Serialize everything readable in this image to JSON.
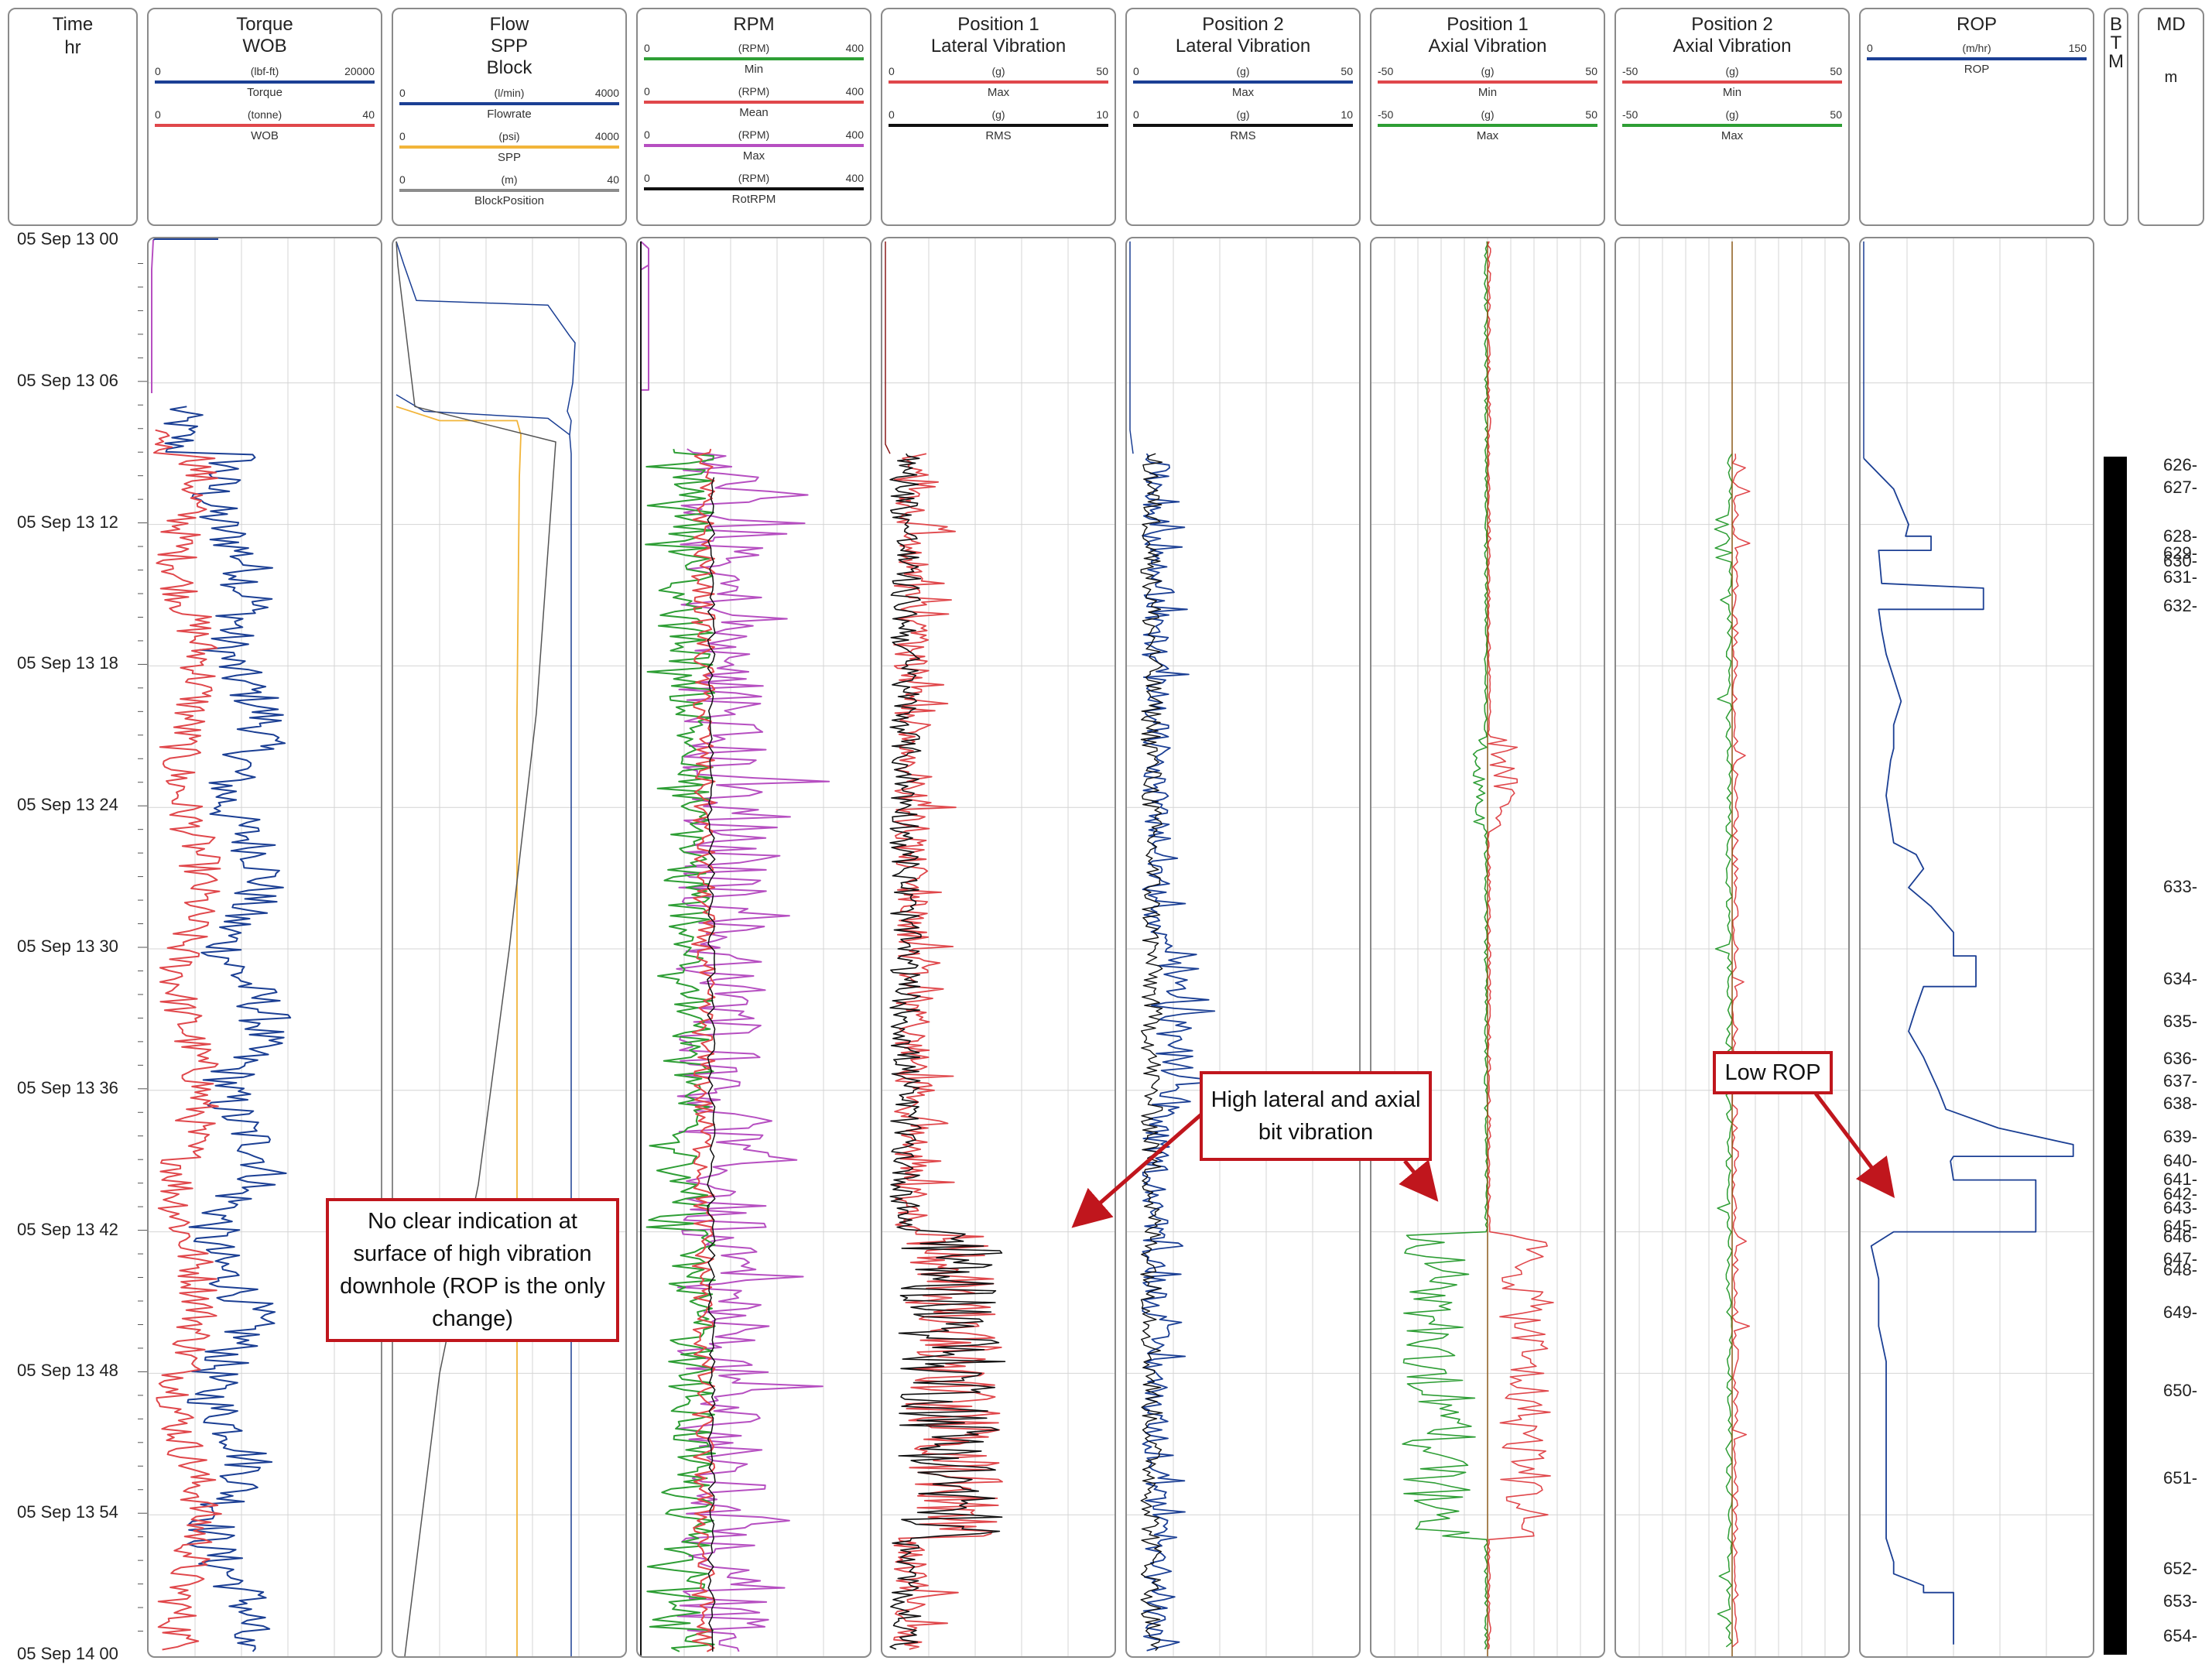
{
  "header": {
    "time": {
      "title": "Time",
      "unit": "hr"
    },
    "torque": {
      "title": [
        "Torque",
        "WOB"
      ],
      "curves": [
        {
          "lo": "0",
          "unit": "(lbf-ft)",
          "hi": "20000",
          "name": "Torque",
          "color": "#1b3f94"
        },
        {
          "lo": "0",
          "unit": "(tonne)",
          "hi": "40",
          "name": "WOB",
          "color": "#e0474b"
        }
      ]
    },
    "flow": {
      "title": [
        "Flow",
        "SPP",
        "Block"
      ],
      "curves": [
        {
          "lo": "0",
          "unit": "(l/min)",
          "hi": "4000",
          "name": "Flowrate",
          "color": "#1b3f94"
        },
        {
          "lo": "0",
          "unit": "(psi)",
          "hi": "4000",
          "name": "SPP",
          "color": "#f2b53a"
        },
        {
          "lo": "0",
          "unit": "(m)",
          "hi": "40",
          "name": "BlockPosition",
          "color": "#8c8c8c"
        }
      ]
    },
    "rpm": {
      "title": [
        "RPM"
      ],
      "curves": [
        {
          "lo": "0",
          "unit": "(RPM)",
          "hi": "400",
          "name": "Min",
          "color": "#2e9e35"
        },
        {
          "lo": "0",
          "unit": "(RPM)",
          "hi": "400",
          "name": "Mean",
          "color": "#e0474b"
        },
        {
          "lo": "0",
          "unit": "(RPM)",
          "hi": "400",
          "name": "Max",
          "color": "#b64fc1"
        },
        {
          "lo": "0",
          "unit": "(RPM)",
          "hi": "400",
          "name": "RotRPM",
          "color": "#111111"
        }
      ]
    },
    "lat1": {
      "title": [
        "Position 1",
        "Lateral Vibration"
      ],
      "curves": [
        {
          "lo": "0",
          "unit": "(g)",
          "hi": "50",
          "name": "Max",
          "color": "#e0474b"
        },
        {
          "lo": "0",
          "unit": "(g)",
          "hi": "10",
          "name": "RMS",
          "color": "#111111"
        }
      ]
    },
    "lat2": {
      "title": [
        "Position 2",
        "Lateral Vibration"
      ],
      "curves": [
        {
          "lo": "0",
          "unit": "(g)",
          "hi": "50",
          "name": "Max",
          "color": "#1b3f94"
        },
        {
          "lo": "0",
          "unit": "(g)",
          "hi": "10",
          "name": "RMS",
          "color": "#111111"
        }
      ]
    },
    "ax1": {
      "title": [
        "Position 1",
        "Axial Vibration"
      ],
      "curves": [
        {
          "lo": "-50",
          "unit": "(g)",
          "hi": "50",
          "name": "Min",
          "color": "#e0474b"
        },
        {
          "lo": "-50",
          "unit": "(g)",
          "hi": "50",
          "name": "Max",
          "color": "#2e9e35"
        }
      ]
    },
    "ax2": {
      "title": [
        "Position 2",
        "Axial Vibration"
      ],
      "curves": [
        {
          "lo": "-50",
          "unit": "(g)",
          "hi": "50",
          "name": "Min",
          "color": "#e0474b"
        },
        {
          "lo": "-50",
          "unit": "(g)",
          "hi": "50",
          "name": "Max",
          "color": "#2e9e35"
        }
      ]
    },
    "rop": {
      "title": [
        "ROP"
      ],
      "curves": [
        {
          "lo": "0",
          "unit": "(m/hr)",
          "hi": "150",
          "name": "ROP",
          "color": "#1b3f94"
        }
      ]
    },
    "btm": {
      "letters": [
        "B",
        "T",
        "M"
      ]
    },
    "md": {
      "title": "MD",
      "unit": "m"
    }
  },
  "time_labels": [
    "05 Sep 13 00",
    "05 Sep 13 06",
    "05 Sep 13 12",
    "05 Sep 13 18",
    "05 Sep 13 24",
    "05 Sep 13 30",
    "05 Sep 13 36",
    "05 Sep 13 42",
    "05 Sep 13 48",
    "05 Sep 13 54",
    "05 Sep 14 00"
  ],
  "md_labels": [
    {
      "v": "626",
      "t": 0.4
    },
    {
      "v": "627",
      "t": 1.5
    },
    {
      "v": "628",
      "t": 3.9
    },
    {
      "v": "629",
      "t": 4.7
    },
    {
      "v": "630",
      "t": 5.1
    },
    {
      "v": "631",
      "t": 5.9
    },
    {
      "v": "632",
      "t": 7.3
    },
    {
      "v": "633",
      "t": 21.0
    },
    {
      "v": "634",
      "t": 25.5
    },
    {
      "v": "635",
      "t": 27.6
    },
    {
      "v": "636",
      "t": 29.4
    },
    {
      "v": "637",
      "t": 30.5
    },
    {
      "v": "638",
      "t": 31.6
    },
    {
      "v": "639",
      "t": 33.2
    },
    {
      "v": "640",
      "t": 34.4
    },
    {
      "v": "641",
      "t": 35.3
    },
    {
      "v": "642",
      "t": 36.0
    },
    {
      "v": "643",
      "t": 36.7
    },
    {
      "v": "645",
      "t": 37.6
    },
    {
      "v": "646",
      "t": 38.1
    },
    {
      "v": "647",
      "t": 39.2
    },
    {
      "v": "648",
      "t": 39.7
    },
    {
      "v": "649",
      "t": 41.8
    },
    {
      "v": "650",
      "t": 45.6
    },
    {
      "v": "651",
      "t": 49.9
    },
    {
      "v": "652",
      "t": 54.3
    },
    {
      "v": "653",
      "t": 55.9
    },
    {
      "v": "654",
      "t": 57.6
    }
  ],
  "callouts": {
    "surface": "No clear indication at surface of high vibration downhole (ROP is the only change)",
    "vibration": "High lateral and axial bit vibration",
    "rop": "Low ROP"
  },
  "chart_data": {
    "type": "line",
    "title": "",
    "y_axis": "Time (hr)",
    "time_range": [
      "05 Sep 13 00",
      "05 Sep 14 00"
    ],
    "btm_bar_start_min": 9.2,
    "series": [
      {
        "name": "ROP",
        "unit": "m/hr",
        "steps": [
          [
            9.2,
            0
          ],
          [
            10.5,
            20
          ],
          [
            12.0,
            30
          ],
          [
            12.5,
            28
          ],
          [
            12.5,
            45
          ],
          [
            13.1,
            45
          ],
          [
            13.1,
            10
          ],
          [
            14.5,
            12
          ],
          [
            14.7,
            80
          ],
          [
            15.6,
            80
          ],
          [
            15.6,
            10
          ],
          [
            16.5,
            12
          ],
          [
            17.5,
            15
          ],
          [
            19.5,
            25
          ],
          [
            20.5,
            20
          ],
          [
            21.5,
            20
          ],
          [
            22.0,
            18
          ],
          [
            23.5,
            15
          ],
          [
            25.5,
            20
          ],
          [
            26.0,
            35
          ],
          [
            26.6,
            40
          ],
          [
            27.4,
            30
          ],
          [
            28.2,
            45
          ],
          [
            29.3,
            60
          ],
          [
            30.3,
            60
          ],
          [
            30.3,
            75
          ],
          [
            31.6,
            75
          ],
          [
            31.6,
            40
          ],
          [
            32.5,
            35
          ],
          [
            33.5,
            30
          ],
          [
            34.6,
            40
          ],
          [
            35.3,
            45
          ],
          [
            36.0,
            50
          ],
          [
            36.8,
            55
          ],
          [
            37.6,
            90
          ],
          [
            38.3,
            140
          ],
          [
            38.8,
            140
          ],
          [
            38.8,
            60
          ],
          [
            39.0,
            58
          ],
          [
            39.8,
            60
          ],
          [
            39.8,
            115
          ],
          [
            42.0,
            115
          ],
          [
            42.0,
            20
          ],
          [
            42.6,
            5
          ],
          [
            44.0,
            10
          ],
          [
            46.0,
            10
          ],
          [
            47.5,
            15
          ],
          [
            49.0,
            15
          ],
          [
            51.0,
            15
          ],
          [
            53.0,
            15
          ],
          [
            55.0,
            15
          ],
          [
            56.0,
            20
          ],
          [
            56.5,
            20
          ],
          [
            57.0,
            40
          ],
          [
            57.3,
            40
          ],
          [
            57.3,
            60
          ],
          [
            59.5,
            60
          ]
        ]
      },
      {
        "name": "Torque",
        "unit": "lbf-ft",
        "approx": "noisy 4000-15000 while drilling from ~9 hr"
      },
      {
        "name": "WOB",
        "unit": "tonne",
        "approx": "noisy 3-20 while drilling from ~9 hr"
      },
      {
        "name": "Flowrate",
        "unit": "l/min",
        "approx": "~3600 steady after ~7 hr"
      },
      {
        "name": "SPP",
        "unit": "psi",
        "approx": "~2100 steady after ~7 hr"
      },
      {
        "name": "BlockPosition",
        "unit": "m",
        "approx": "declining from ~30 to ~5 over drilling interval"
      },
      {
        "name": "Position 1 Lateral Vibration Max",
        "unit": "g",
        "approx": "peaks up to ~50 g at 42-54 hr"
      },
      {
        "name": "Position 1 Axial Vibration",
        "unit": "g",
        "approx": "peaks up to +/-45 g at 42-54 hr"
      }
    ]
  }
}
